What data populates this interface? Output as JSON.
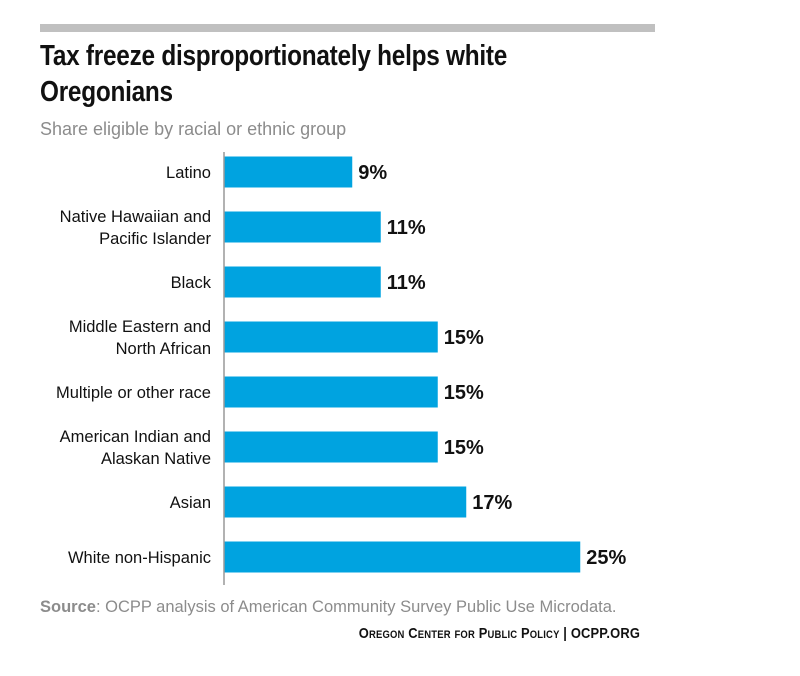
{
  "header": {
    "title": "Tax freeze disproportionately helps white Oregonians",
    "subtitle": "Share eligible by racial or ethnic group"
  },
  "footer": {
    "source_label": "Source",
    "source_text": ": OCPP analysis of American Community Survey Public Use Microdata.",
    "credit": "Oregon Center for Public Policy | OCPP.ORG"
  },
  "colors": {
    "bar": "#00a3e0",
    "axis": "#999999",
    "text": "#111111",
    "muted": "#8c8c8c",
    "top_rule": "#c0c0c0"
  },
  "chart_data": {
    "type": "bar",
    "orientation": "horizontal",
    "categories": [
      [
        "Latino"
      ],
      [
        "Native Hawaiian and",
        "Pacific Islander"
      ],
      [
        "Black"
      ],
      [
        "Middle Eastern and",
        "North African"
      ],
      [
        "Multiple or other race"
      ],
      [
        "American Indian and",
        "Alaskan Native"
      ],
      [
        "Asian"
      ],
      [
        "White non-Hispanic"
      ]
    ],
    "values": [
      9,
      11,
      11,
      15,
      15,
      15,
      17,
      25
    ],
    "value_labels": [
      "9%",
      "11%",
      "11%",
      "15%",
      "15%",
      "15%",
      "17%",
      "25%"
    ],
    "xlim": [
      0,
      25
    ],
    "grid": false,
    "legend": "none"
  }
}
